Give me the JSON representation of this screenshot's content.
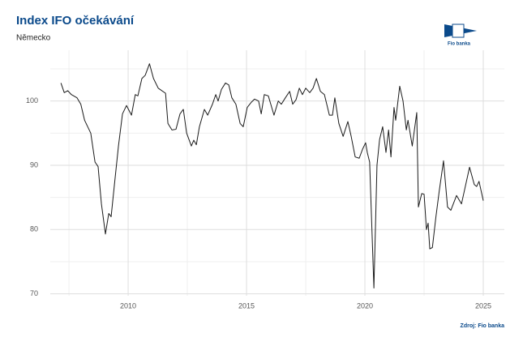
{
  "chart_data": {
    "type": "line",
    "title": "Index IFO očekávání",
    "subtitle": "Německo",
    "source": "Zdroj: Fio banka",
    "logo": "Fio banka",
    "color": "#1a1a1a",
    "grid": true,
    "xlim": [
      2006.71,
      2025.89
    ],
    "ylim": [
      69.7,
      107.9
    ],
    "xticks": [
      2010,
      2015,
      2020,
      2025
    ],
    "yticks": [
      70,
      80,
      90,
      100
    ],
    "series": [
      {
        "name": "Index IFO očekávání",
        "color": "#1a1a1a",
        "x": [
          2007.16,
          2007.3,
          2007.45,
          2007.6,
          2007.84,
          2008.0,
          2008.16,
          2008.42,
          2008.6,
          2008.73,
          2008.87,
          2009.04,
          2009.18,
          2009.28,
          2009.42,
          2009.59,
          2009.76,
          2009.93,
          2010.14,
          2010.3,
          2010.41,
          2010.58,
          2010.72,
          2010.9,
          2011.07,
          2011.27,
          2011.58,
          2011.68,
          2011.85,
          2012.02,
          2012.19,
          2012.33,
          2012.47,
          2012.67,
          2012.77,
          2012.88,
          2013.01,
          2013.22,
          2013.36,
          2013.56,
          2013.7,
          2013.8,
          2013.94,
          2014.11,
          2014.25,
          2014.38,
          2014.55,
          2014.73,
          2014.86,
          2015.03,
          2015.2,
          2015.34,
          2015.51,
          2015.62,
          2015.75,
          2015.92,
          2016.16,
          2016.34,
          2016.47,
          2016.64,
          2016.82,
          2016.95,
          2017.09,
          2017.23,
          2017.36,
          2017.5,
          2017.67,
          2017.81,
          2017.95,
          2018.12,
          2018.29,
          2018.5,
          2018.63,
          2018.73,
          2018.9,
          2019.08,
          2019.28,
          2019.42,
          2019.59,
          2019.76,
          2019.9,
          2020.03,
          2020.1,
          2020.2,
          2020.38,
          2020.45,
          2020.51,
          2020.62,
          2020.75,
          2020.89,
          2021.0,
          2021.1,
          2021.23,
          2021.3,
          2021.47,
          2021.61,
          2021.75,
          2021.82,
          2022.0,
          2022.19,
          2022.26,
          2022.4,
          2022.5,
          2022.6,
          2022.67,
          2022.74,
          2022.85,
          2023.0,
          2023.14,
          2023.32,
          2023.49,
          2023.63,
          2023.87,
          2024.08,
          2024.42,
          2024.62,
          2024.72,
          2024.82,
          2025.0
        ],
        "values": [
          102.8,
          101.3,
          101.6,
          101.0,
          100.5,
          99.5,
          97.0,
          95.0,
          90.5,
          89.8,
          84.0,
          79.3,
          82.5,
          82.0,
          87.0,
          93.0,
          98.0,
          99.3,
          97.8,
          101.0,
          100.8,
          103.5,
          104.0,
          105.8,
          103.5,
          102.0,
          101.2,
          96.5,
          95.5,
          95.6,
          98.0,
          98.7,
          95.0,
          93.0,
          93.9,
          93.2,
          96.0,
          98.7,
          97.8,
          99.5,
          101.0,
          100.0,
          101.8,
          102.8,
          102.5,
          100.5,
          99.5,
          96.5,
          96.0,
          99.0,
          99.8,
          100.3,
          100.0,
          98.0,
          101.0,
          100.8,
          97.8,
          100.0,
          99.5,
          100.5,
          101.5,
          99.5,
          100.2,
          102.0,
          101.0,
          102.0,
          101.3,
          102.0,
          103.5,
          101.5,
          101.0,
          97.8,
          97.8,
          100.5,
          96.5,
          94.5,
          96.8,
          94.5,
          91.3,
          91.1,
          92.5,
          93.5,
          92.0,
          90.5,
          70.9,
          81.0,
          90.0,
          94.0,
          96.0,
          92.0,
          95.5,
          91.3,
          99.0,
          97.0,
          102.3,
          100.0,
          95.5,
          97.0,
          93.0,
          98.2,
          83.5,
          85.6,
          85.5,
          80.0,
          81.0,
          77.0,
          77.2,
          82.0,
          86.0,
          90.7,
          83.5,
          83.0,
          85.3,
          84.0,
          89.7,
          87.0,
          86.7,
          87.5,
          84.5
        ]
      }
    ]
  }
}
